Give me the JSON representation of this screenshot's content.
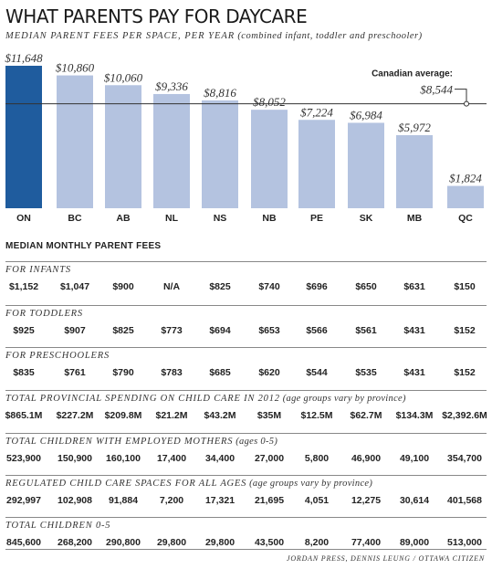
{
  "title": "WHAT PARENTS PAY FOR DAYCARE",
  "subtitle_caps": "MEDIAN PARENT FEES PER SPACE, PER YEAR",
  "subtitle_note": "(combined infant, toddler and preschooler)",
  "colors": {
    "highlight": "#1f5c9e",
    "bar": "#b4c3e0",
    "average_line": "#333333"
  },
  "chart_data": {
    "type": "bar",
    "categories": [
      "ON",
      "BC",
      "AB",
      "NL",
      "NS",
      "NB",
      "PE",
      "SK",
      "MB",
      "QC"
    ],
    "values": [
      11648,
      10860,
      10060,
      9336,
      8816,
      8052,
      7224,
      6984,
      5972,
      1824
    ],
    "value_labels": [
      "$11,648",
      "$10,860",
      "$10,060",
      "$9,336",
      "$8,816",
      "$8,052",
      "$7,224",
      "$6,984",
      "$5,972",
      "$1,824"
    ],
    "highlight_index": 0,
    "ylim": [
      0,
      11648
    ],
    "average": {
      "label": "Canadian average:",
      "value": 8544,
      "value_label": "$8,544"
    }
  },
  "monthly_heading": "MEDIAN MONTHLY PARENT FEES",
  "sections": [
    {
      "title": "FOR INFANTS",
      "values": [
        "$1,152",
        "$1,047",
        "$900",
        "N/A",
        "$825",
        "$740",
        "$696",
        "$650",
        "$631",
        "$150"
      ]
    },
    {
      "title": "FOR TODDLERS",
      "values": [
        "$925",
        "$907",
        "$825",
        "$773",
        "$694",
        "$653",
        "$566",
        "$561",
        "$431",
        "$152"
      ]
    },
    {
      "title": "FOR PRESCHOOLERS",
      "values": [
        "$835",
        "$761",
        "$790",
        "$783",
        "$685",
        "$620",
        "$544",
        "$535",
        "$431",
        "$152"
      ]
    },
    {
      "title": "TOTAL PROVINCIAL SPENDING ON CHILD CARE IN 2012",
      "note": "(age groups vary by province)",
      "values": [
        "$865.1M",
        "$227.2M",
        "$209.8M",
        "$21.2M",
        "$43.2M",
        "$35M",
        "$12.5M",
        "$62.7M",
        "$134.3M",
        "$2,392.6M"
      ]
    },
    {
      "title": "TOTAL CHILDREN WITH EMPLOYED MOTHERS",
      "note": "(ages 0-5)",
      "values": [
        "523,900",
        "150,900",
        "160,100",
        "17,400",
        "34,400",
        "27,000",
        "5,800",
        "46,900",
        "49,100",
        "354,700"
      ]
    },
    {
      "title": "REGULATED CHILD CARE SPACES FOR ALL AGES",
      "note": "(age groups vary by province)",
      "values": [
        "292,997",
        "102,908",
        "91,884",
        "7,200",
        "17,321",
        "21,695",
        "4,051",
        "12,275",
        "30,614",
        "401,568"
      ]
    },
    {
      "title": "TOTAL CHILDREN 0-5",
      "values": [
        "845,600",
        "268,200",
        "290,800",
        "29,800",
        "29,800",
        "43,500",
        "8,200",
        "77,400",
        "89,000",
        "513,000"
      ]
    }
  ],
  "credit": "JORDAN PRESS, DENNIS LEUNG / OTTAWA CITIZEN"
}
